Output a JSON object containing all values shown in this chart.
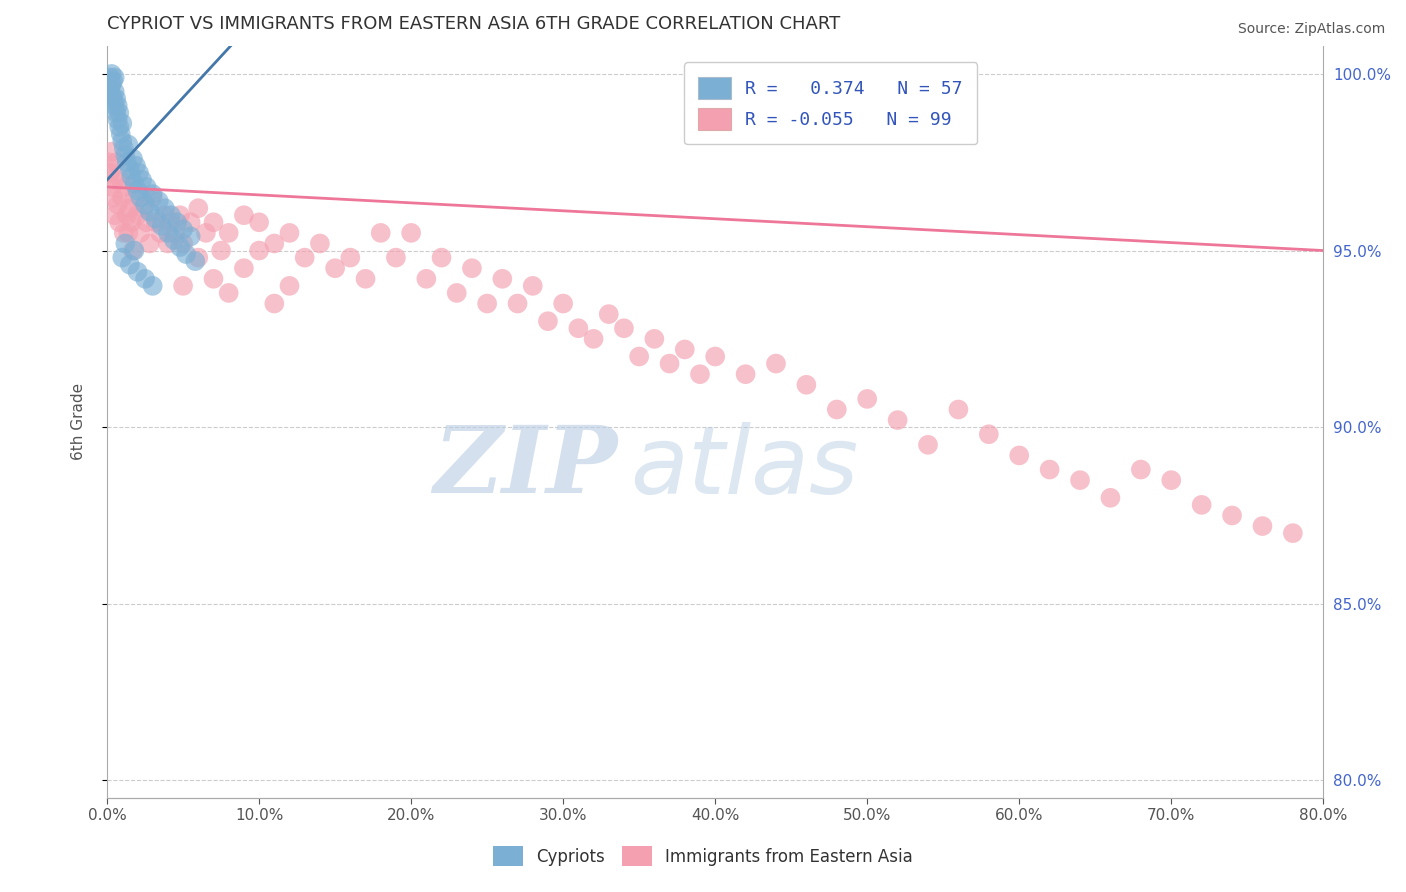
{
  "title": "CYPRIOT VS IMMIGRANTS FROM EASTERN ASIA 6TH GRADE CORRELATION CHART",
  "source_text": "Source: ZipAtlas.com",
  "ylabel": "6th Grade",
  "xlim": [
    0.0,
    0.8
  ],
  "ylim": [
    0.795,
    1.008
  ],
  "xticks": [
    0.0,
    0.1,
    0.2,
    0.3,
    0.4,
    0.5,
    0.6,
    0.7,
    0.8
  ],
  "xticklabels": [
    "0.0%",
    "10.0%",
    "20.0%",
    "30.0%",
    "40.0%",
    "50.0%",
    "60.0%",
    "70.0%",
    "80.0%"
  ],
  "yticks": [
    0.8,
    0.85,
    0.9,
    0.95,
    1.0
  ],
  "yticklabels": [
    "80.0%",
    "85.0%",
    "90.0%",
    "95.0%",
    "100.0%"
  ],
  "blue_color": "#7BAFD4",
  "pink_color": "#F4A0B0",
  "blue_line_color": "#4477AA",
  "pink_line_color": "#EE7799",
  "watermark_zip": "ZIP",
  "watermark_atlas": "atlas",
  "background_color": "#FFFFFF",
  "blue_scatter_x": [
    0.001,
    0.002,
    0.002,
    0.003,
    0.003,
    0.003,
    0.004,
    0.004,
    0.005,
    0.005,
    0.005,
    0.006,
    0.006,
    0.007,
    0.007,
    0.008,
    0.008,
    0.009,
    0.01,
    0.01,
    0.011,
    0.012,
    0.013,
    0.014,
    0.015,
    0.016,
    0.017,
    0.018,
    0.019,
    0.02,
    0.021,
    0.022,
    0.023,
    0.025,
    0.026,
    0.028,
    0.03,
    0.032,
    0.034,
    0.036,
    0.038,
    0.04,
    0.042,
    0.044,
    0.046,
    0.048,
    0.05,
    0.052,
    0.055,
    0.058,
    0.01,
    0.012,
    0.015,
    0.018,
    0.02,
    0.025,
    0.03
  ],
  "blue_scatter_y": [
    0.998,
    0.996,
    0.999,
    0.994,
    0.997,
    1.0,
    0.993,
    0.998,
    0.991,
    0.995,
    0.999,
    0.989,
    0.993,
    0.987,
    0.991,
    0.985,
    0.989,
    0.983,
    0.981,
    0.986,
    0.979,
    0.977,
    0.975,
    0.98,
    0.973,
    0.971,
    0.976,
    0.969,
    0.974,
    0.967,
    0.972,
    0.965,
    0.97,
    0.963,
    0.968,
    0.961,
    0.966,
    0.959,
    0.964,
    0.957,
    0.962,
    0.955,
    0.96,
    0.953,
    0.958,
    0.951,
    0.956,
    0.949,
    0.954,
    0.947,
    0.948,
    0.952,
    0.946,
    0.95,
    0.944,
    0.942,
    0.94
  ],
  "pink_scatter_x": [
    0.001,
    0.002,
    0.003,
    0.003,
    0.004,
    0.005,
    0.005,
    0.006,
    0.007,
    0.008,
    0.009,
    0.01,
    0.011,
    0.012,
    0.013,
    0.014,
    0.015,
    0.016,
    0.017,
    0.018,
    0.02,
    0.022,
    0.024,
    0.026,
    0.028,
    0.03,
    0.032,
    0.035,
    0.038,
    0.04,
    0.042,
    0.045,
    0.048,
    0.05,
    0.055,
    0.06,
    0.065,
    0.07,
    0.075,
    0.08,
    0.09,
    0.1,
    0.11,
    0.12,
    0.13,
    0.14,
    0.15,
    0.16,
    0.17,
    0.18,
    0.19,
    0.2,
    0.21,
    0.22,
    0.23,
    0.24,
    0.25,
    0.26,
    0.27,
    0.28,
    0.29,
    0.3,
    0.31,
    0.32,
    0.33,
    0.34,
    0.35,
    0.36,
    0.37,
    0.38,
    0.39,
    0.4,
    0.42,
    0.44,
    0.46,
    0.48,
    0.5,
    0.52,
    0.54,
    0.56,
    0.58,
    0.6,
    0.62,
    0.64,
    0.66,
    0.68,
    0.7,
    0.72,
    0.74,
    0.76,
    0.78,
    0.05,
    0.06,
    0.07,
    0.08,
    0.09,
    0.1,
    0.11,
    0.12
  ],
  "pink_scatter_y": [
    0.975,
    0.972,
    0.968,
    0.978,
    0.965,
    0.97,
    0.96,
    0.975,
    0.963,
    0.958,
    0.97,
    0.965,
    0.955,
    0.968,
    0.96,
    0.955,
    0.962,
    0.958,
    0.95,
    0.965,
    0.96,
    0.955,
    0.962,
    0.958,
    0.952,
    0.965,
    0.958,
    0.955,
    0.96,
    0.952,
    0.958,
    0.955,
    0.96,
    0.952,
    0.958,
    0.962,
    0.955,
    0.958,
    0.95,
    0.955,
    0.96,
    0.958,
    0.952,
    0.955,
    0.948,
    0.952,
    0.945,
    0.948,
    0.942,
    0.955,
    0.948,
    0.955,
    0.942,
    0.948,
    0.938,
    0.945,
    0.935,
    0.942,
    0.935,
    0.94,
    0.93,
    0.935,
    0.928,
    0.925,
    0.932,
    0.928,
    0.92,
    0.925,
    0.918,
    0.922,
    0.915,
    0.92,
    0.915,
    0.918,
    0.912,
    0.905,
    0.908,
    0.902,
    0.895,
    0.905,
    0.898,
    0.892,
    0.888,
    0.885,
    0.88,
    0.888,
    0.885,
    0.878,
    0.875,
    0.872,
    0.87,
    0.94,
    0.948,
    0.942,
    0.938,
    0.945,
    0.95,
    0.935,
    0.94
  ],
  "pink_trend_x0": 0.0,
  "pink_trend_y0": 0.968,
  "pink_trend_x1": 0.8,
  "pink_trend_y1": 0.95,
  "blue_trend_x0": 0.0,
  "blue_trend_y0": 0.97,
  "blue_trend_x1": 0.06,
  "blue_trend_y1": 0.998
}
